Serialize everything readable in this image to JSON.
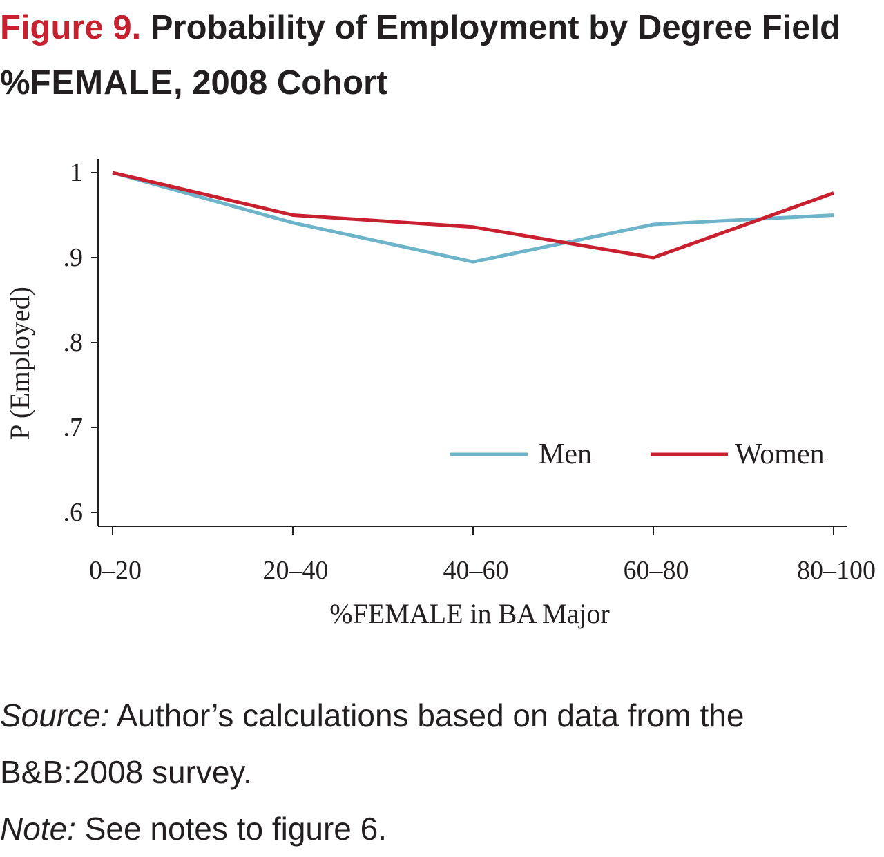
{
  "figure": {
    "label": "Figure 9.",
    "title_part1": "Probability of Employment by Degree Field %",
    "title_smallcaps": "FEMALE",
    "title_part2": ", 2008 Cohort"
  },
  "notes": {
    "source_label": "Source:",
    "source_text": " Author’s calculations based on data from the B&B:2008 survey.",
    "note_label": "Note:",
    "note_text": " See notes to figure 6."
  },
  "chart_data": {
    "type": "line",
    "title": "Probability of Employment by Degree Field %FEMALE, 2008 Cohort",
    "xlabel": "%FEMALE in BA Major",
    "ylabel": "P (Employed)",
    "categories": [
      "0–20",
      "20–40",
      "40–60",
      "60–80",
      "80–100"
    ],
    "yticks": [
      {
        "value": 1.0,
        "label": "1"
      },
      {
        "value": 0.9,
        "label": ".9"
      },
      {
        "value": 0.8,
        "label": ".8"
      },
      {
        "value": 0.7,
        "label": ".7"
      },
      {
        "value": 0.6,
        "label": ".6"
      }
    ],
    "ylim": [
      0.585,
      1.015
    ],
    "grid": false,
    "legend_position": "bottom-right",
    "series": [
      {
        "name": "Men",
        "color": "#6db3c9",
        "values": [
          1.0,
          0.941,
          0.895,
          0.939,
          0.95
        ]
      },
      {
        "name": "Women",
        "color": "#c8202f",
        "values": [
          1.0,
          0.95,
          0.936,
          0.9,
          0.976
        ]
      }
    ]
  }
}
